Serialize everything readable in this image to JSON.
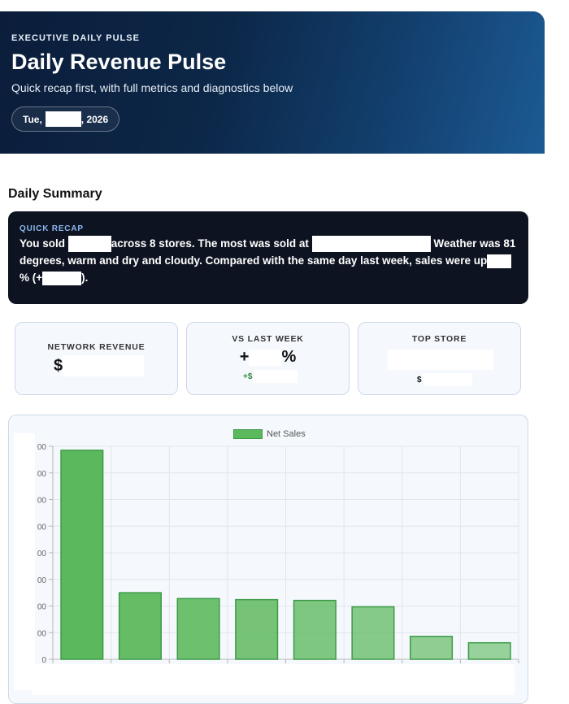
{
  "header": {
    "eyebrow": "EXECUTIVE DAILY PULSE",
    "title": "Daily Revenue Pulse",
    "subtitle": "Quick recap first, with full metrics and diagnostics below",
    "date_prefix": "Tue,",
    "date_suffix": ", 2026"
  },
  "summary": {
    "section_title": "Daily Summary",
    "recap_label": "QUICK RECAP",
    "recap_p1": "You sold",
    "recap_p2": "across 8 stores. The most was sold at",
    "recap_p3": "Weather was 81 degrees, warm and dry and cloudy. Compared with the same day last week, sales were up",
    "recap_p4": "% (+",
    "recap_p5": ")."
  },
  "kpis": {
    "network_revenue": {
      "label": "NETWORK REVENUE",
      "value_prefix": "$"
    },
    "vs_last_week": {
      "label": "VS LAST WEEK",
      "value_prefix": "+",
      "value_suffix": "%",
      "sub_prefix": "+$"
    },
    "top_store": {
      "label": "TOP STORE",
      "sub_prefix": "$"
    }
  },
  "chart_data": {
    "type": "bar",
    "legend": "Net Sales",
    "series": [
      {
        "name": "Net Sales",
        "values": [
          7.85,
          2.5,
          2.28,
          2.24,
          2.21,
          1.97,
          0.86,
          0.62
        ]
      }
    ],
    "ytick_labels": [
      "0",
      "00",
      "00",
      "00",
      "00",
      "00",
      "00",
      "00",
      "00"
    ],
    "ylim": [
      0,
      8
    ],
    "bar_fill": "#5cb85c",
    "bar_stroke": "#3d9a46",
    "grid": true
  }
}
